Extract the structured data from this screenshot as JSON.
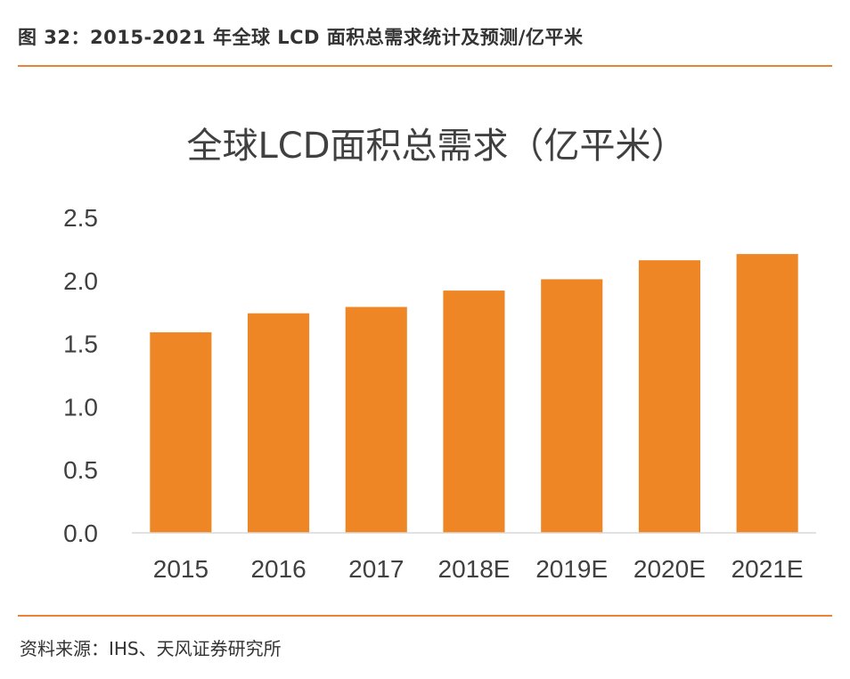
{
  "header": {
    "figure_title": "图 32：2015-2021 年全球 LCD 面积总需求统计及预测/亿平米"
  },
  "chart_data": {
    "type": "bar",
    "title": "全球LCD面积总需求（亿平米）",
    "categories": [
      "2015",
      "2016",
      "2017",
      "2018E",
      "2019E",
      "2020E",
      "2021E"
    ],
    "series": [
      {
        "name": "全球LCD面积总需求",
        "values": [
          1.59,
          1.74,
          1.79,
          1.92,
          2.01,
          2.16,
          2.21
        ]
      }
    ],
    "xlabel": "",
    "ylabel": "",
    "ylim": [
      0,
      2.5
    ],
    "yticks": [
      "0.0",
      "0.5",
      "1.0",
      "1.5",
      "2.0",
      "2.5"
    ],
    "grid": false,
    "legend": "none",
    "bar_color": "#EE8625"
  },
  "footer": {
    "source": "资料来源：IHS、天风证券研究所"
  },
  "colors": {
    "accent_rule": "#E8843A",
    "bar": "#EE8625",
    "text": "#333333",
    "axis": "#D9D9D9"
  }
}
